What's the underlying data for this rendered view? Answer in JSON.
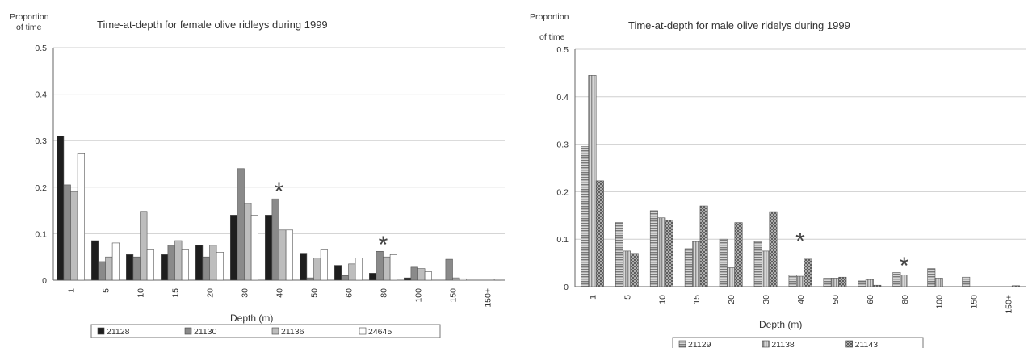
{
  "colors": {
    "female_21128": "#1e1e1e",
    "female_21130": "#8a8a8a",
    "female_21136": "#bdbdbd",
    "female_24645": "#ffffff",
    "male_21129": "#9a9a9a",
    "male_21138": "#b8b8b8",
    "male_21143": "#7a7a7a",
    "grid": "#cfcfcf",
    "axis": "#666666"
  },
  "chart_data": [
    {
      "type": "bar",
      "title": "Time-at-depth for female olive ridleys during 1999",
      "ylabel_line1": "Proportion",
      "ylabel_line2": "of time",
      "xlabel": "Depth (m)",
      "ylim": [
        0,
        0.5
      ],
      "yticks": [
        "0",
        "0.1",
        "0.2",
        "0.3",
        "0.4",
        "0.5"
      ],
      "categories": [
        "1",
        "5",
        "10",
        "15",
        "20",
        "30",
        "40",
        "50",
        "60",
        "80",
        "100",
        "150",
        "150+"
      ],
      "legend_position": "bottom",
      "grid": true,
      "series": [
        {
          "name": "21128",
          "values": [
            0.31,
            0.085,
            0.055,
            0.055,
            0.075,
            0.14,
            0.14,
            0.058,
            0.032,
            0.015,
            0.005,
            0.0,
            0.0
          ]
        },
        {
          "name": "21130",
          "values": [
            0.205,
            0.04,
            0.05,
            0.075,
            0.05,
            0.24,
            0.175,
            0.005,
            0.01,
            0.062,
            0.028,
            0.045,
            0.0
          ]
        },
        {
          "name": "21136",
          "values": [
            0.19,
            0.05,
            0.148,
            0.085,
            0.075,
            0.165,
            0.108,
            0.048,
            0.035,
            0.05,
            0.025,
            0.005,
            0.0
          ]
        },
        {
          "name": "24645",
          "values": [
            0.272,
            0.08,
            0.065,
            0.065,
            0.06,
            0.14,
            0.108,
            0.065,
            0.048,
            0.055,
            0.018,
            0.003,
            0.002
          ]
        }
      ],
      "annotations": [
        {
          "text": "*",
          "category": "40",
          "y": 0.205
        },
        {
          "text": "*",
          "category": "80",
          "y": 0.09
        }
      ]
    },
    {
      "type": "bar",
      "title": "Time-at-depth for male olive ridelys during 1999",
      "ylabel_line1": "Proportion",
      "ylabel_line2": "of time",
      "xlabel": "Depth (m)",
      "ylim": [
        0,
        0.5
      ],
      "yticks": [
        "0",
        "0.1",
        "0.2",
        "0.3",
        "0.4",
        "0.5"
      ],
      "categories": [
        "1",
        "5",
        "10",
        "15",
        "20",
        "30",
        "40",
        "50",
        "60",
        "80",
        "100",
        "150",
        "150+"
      ],
      "legend_position": "bottom",
      "grid": true,
      "series": [
        {
          "name": "21129",
          "values": [
            0.295,
            0.135,
            0.16,
            0.08,
            0.1,
            0.095,
            0.025,
            0.018,
            0.012,
            0.03,
            0.038,
            0.02,
            0.0
          ]
        },
        {
          "name": "21138",
          "values": [
            0.445,
            0.075,
            0.145,
            0.095,
            0.04,
            0.075,
            0.022,
            0.018,
            0.015,
            0.025,
            0.018,
            0.0,
            0.0
          ]
        },
        {
          "name": "21143",
          "values": [
            0.223,
            0.07,
            0.14,
            0.17,
            0.135,
            0.158,
            0.058,
            0.02,
            0.003,
            0.0,
            0.0,
            0.0,
            0.002
          ]
        }
      ],
      "annotations": [
        {
          "text": "*",
          "category": "40",
          "y": 0.11
        },
        {
          "text": "*",
          "category": "80",
          "y": 0.058
        }
      ]
    }
  ]
}
